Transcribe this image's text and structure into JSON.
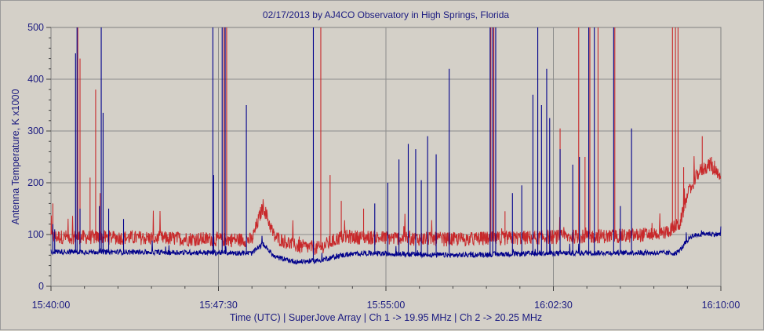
{
  "chart_data": {
    "type": "line",
    "title": "02/17/2013  by  AJ4CO Observatory  in  High Springs, Florida",
    "xlabel": "Time (UTC)  |  SuperJove Array  |  Ch 1 -> 19.95 MHz  |  Ch 2 -> 20.25 MHz",
    "ylabel": "Antenna Temperature, K x1000",
    "xlim": [
      "15:40:00",
      "16:10:00"
    ],
    "ylim": [
      0,
      500
    ],
    "x_tick_labels": [
      "15:40:00",
      "15:47:30",
      "15:55:00",
      "16:02:30",
      "16:10:00"
    ],
    "y_tick_labels": [
      "0",
      "100",
      "200",
      "300",
      "400",
      "500"
    ],
    "grid": true,
    "colors": {
      "ch1": "#00008b",
      "ch2": "#c8282a",
      "background": "#d4d0c8",
      "grid": "#8c8c8c",
      "text": "#1a1a80"
    },
    "series": [
      {
        "name": "Ch 1 -> 19.95 MHz",
        "color": "#00008b",
        "baseline_points": [
          [
            "15:40:00",
            65
          ],
          [
            "15:44:00",
            64
          ],
          [
            "15:47:30",
            63
          ],
          [
            "15:49:00",
            62
          ],
          [
            "15:49:30",
            80
          ],
          [
            "15:50:00",
            55
          ],
          [
            "15:51:00",
            45
          ],
          [
            "15:52:00",
            48
          ],
          [
            "15:53:00",
            58
          ],
          [
            "15:54:00",
            62
          ],
          [
            "15:56:00",
            60
          ],
          [
            "15:58:00",
            58
          ],
          [
            "16:00:00",
            60
          ],
          [
            "16:03:00",
            62
          ],
          [
            "16:06:00",
            63
          ],
          [
            "16:08:00",
            62
          ],
          [
            "16:08:10",
            68
          ],
          [
            "16:08:40",
            95
          ],
          [
            "16:09:20",
            100
          ],
          [
            "16:10:00",
            98
          ]
        ],
        "spikes": [
          [
            "15:40:05",
            120
          ],
          [
            "15:40:10",
            110
          ],
          [
            "15:41:06",
            450
          ],
          [
            "15:41:10",
            500
          ],
          [
            "15:41:18",
            150
          ],
          [
            "15:42:10",
            155
          ],
          [
            "15:42:15",
            500
          ],
          [
            "15:42:20",
            335
          ],
          [
            "15:42:35",
            150
          ],
          [
            "15:43:15",
            130
          ],
          [
            "15:47:15",
            500
          ],
          [
            "15:47:17",
            215
          ],
          [
            "15:47:40",
            500
          ],
          [
            "15:47:48",
            500
          ],
          [
            "15:48:45",
            350
          ],
          [
            "15:51:45",
            500
          ],
          [
            "15:54:30",
            160
          ],
          [
            "15:55:05",
            200
          ],
          [
            "15:55:35",
            245
          ],
          [
            "15:56:00",
            275
          ],
          [
            "15:56:20",
            265
          ],
          [
            "15:56:35",
            205
          ],
          [
            "15:56:52",
            290
          ],
          [
            "15:57:15",
            255
          ],
          [
            "15:57:50",
            420
          ],
          [
            "15:59:40",
            500
          ],
          [
            "15:59:47",
            500
          ],
          [
            "15:59:55",
            500
          ],
          [
            "16:00:40",
            180
          ],
          [
            "16:01:05",
            195
          ],
          [
            "16:01:35",
            370
          ],
          [
            "16:01:48",
            500
          ],
          [
            "16:01:58",
            350
          ],
          [
            "16:02:12",
            420
          ],
          [
            "16:02:20",
            325
          ],
          [
            "16:02:48",
            265
          ],
          [
            "16:03:22",
            235
          ],
          [
            "16:03:40",
            250
          ],
          [
            "16:04:05",
            500
          ],
          [
            "16:04:20",
            500
          ],
          [
            "16:05:12",
            500
          ],
          [
            "16:05:30",
            155
          ],
          [
            "16:06:00",
            305
          ]
        ]
      },
      {
        "name": "Ch 2 -> 20.25 MHz",
        "color": "#c8282a",
        "baseline_points": [
          [
            "15:40:00",
            90
          ],
          [
            "15:44:00",
            88
          ],
          [
            "15:47:30",
            85
          ],
          [
            "15:49:00",
            84
          ],
          [
            "15:49:30",
            150
          ],
          [
            "15:50:00",
            90
          ],
          [
            "15:51:00",
            72
          ],
          [
            "15:52:00",
            68
          ],
          [
            "15:53:00",
            90
          ],
          [
            "15:55:00",
            88
          ],
          [
            "15:58:00",
            85
          ],
          [
            "16:00:00",
            87
          ],
          [
            "16:03:00",
            90
          ],
          [
            "16:06:00",
            92
          ],
          [
            "16:07:30",
            98
          ],
          [
            "16:08:10",
            115
          ],
          [
            "16:08:30",
            170
          ],
          [
            "16:09:00",
            215
          ],
          [
            "16:09:30",
            230
          ],
          [
            "16:10:00",
            200
          ]
        ],
        "spikes": [
          [
            "15:40:05",
            160
          ],
          [
            "15:41:12",
            500
          ],
          [
            "15:41:18",
            440
          ],
          [
            "15:41:45",
            210
          ],
          [
            "15:42:00",
            380
          ],
          [
            "15:42:12",
            180
          ],
          [
            "15:47:45",
            500
          ],
          [
            "15:47:52",
            500
          ],
          [
            "15:52:05",
            500
          ],
          [
            "15:52:30",
            215
          ],
          [
            "15:53:00",
            165
          ],
          [
            "15:54:00",
            150
          ],
          [
            "15:59:42",
            500
          ],
          [
            "15:59:50",
            500
          ],
          [
            "16:00:20",
            145
          ],
          [
            "16:02:48",
            305
          ],
          [
            "16:03:38",
            500
          ],
          [
            "16:03:55",
            250
          ],
          [
            "16:04:08",
            500
          ],
          [
            "16:04:30",
            500
          ],
          [
            "16:05:15",
            500
          ],
          [
            "16:07:50",
            500
          ],
          [
            "16:07:58",
            500
          ],
          [
            "16:08:05",
            500
          ],
          [
            "16:08:20",
            230
          ],
          [
            "16:09:10",
            290
          ],
          [
            "16:09:35",
            250
          ]
        ]
      }
    ]
  }
}
